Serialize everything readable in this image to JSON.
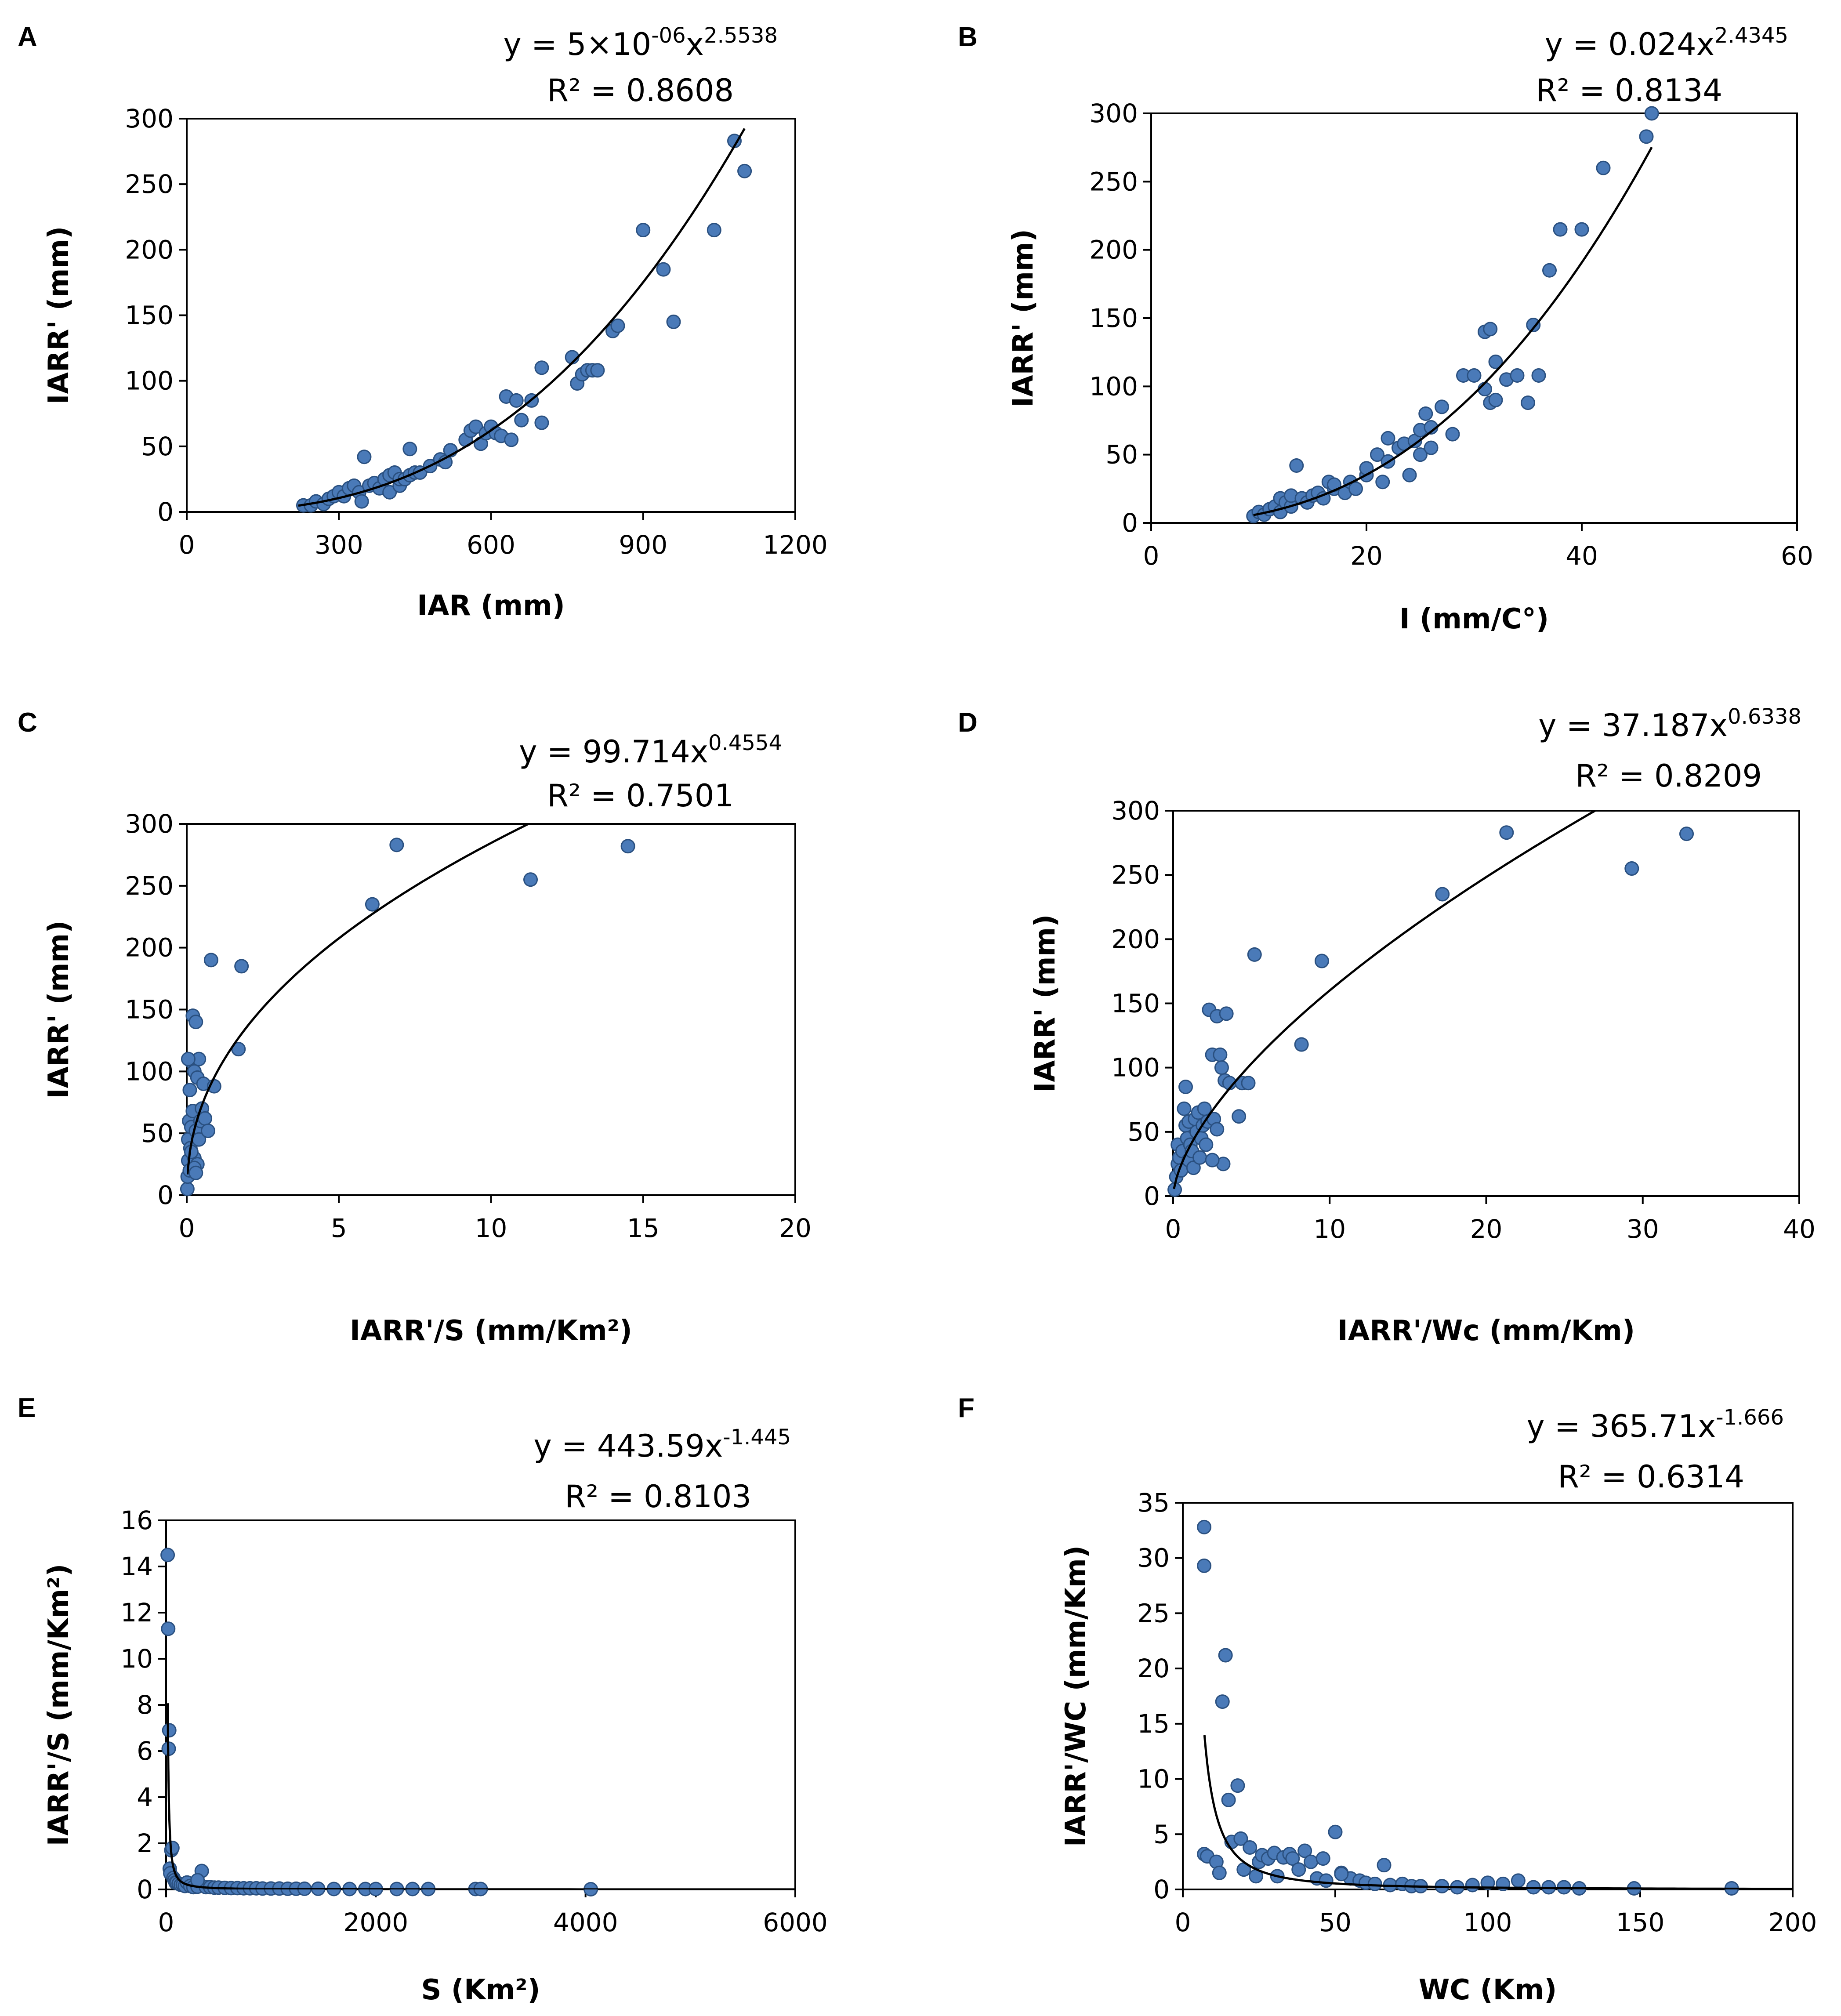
{
  "colors": {
    "point_fill": "#4a7ab8",
    "point_stroke": "#2a5080",
    "line": "#000000"
  },
  "chart_data": [
    {
      "id": "A",
      "type": "scatter",
      "letter": "A",
      "eq_base": "y = 5×10",
      "eq_exp1": "-06",
      "eq_mid": "x",
      "eq_exp2": "2.5538",
      "r2": "R² = 0.8608",
      "xlabel": "IAR (mm)",
      "ylabel": "IARR' (mm)",
      "xlim": [
        0,
        1200
      ],
      "ylim": [
        0,
        300
      ],
      "xticks": [
        "0",
        "300",
        "600",
        "900",
        "1200"
      ],
      "yticks": [
        "0",
        "50",
        "100",
        "150",
        "200",
        "250",
        "300"
      ],
      "trend": {
        "kind": "power",
        "a": 5e-06,
        "b": 2.5538,
        "xmin": 220,
        "xmax": 1100
      },
      "x": [
        230,
        245,
        255,
        270,
        280,
        290,
        300,
        310,
        320,
        330,
        340,
        345,
        350,
        360,
        370,
        380,
        390,
        400,
        400,
        410,
        420,
        420,
        430,
        440,
        440,
        450,
        460,
        480,
        500,
        510,
        520,
        550,
        560,
        570,
        580,
        590,
        600,
        610,
        620,
        630,
        640,
        650,
        660,
        680,
        700,
        700,
        760,
        770,
        780,
        790,
        800,
        810,
        840,
        850,
        900,
        940,
        960,
        1040,
        1080,
        1100
      ],
      "y": [
        5,
        5,
        8,
        6,
        10,
        12,
        15,
        12,
        18,
        20,
        15,
        8,
        42,
        20,
        22,
        18,
        25,
        28,
        15,
        30,
        20,
        25,
        25,
        28,
        48,
        30,
        30,
        35,
        40,
        38,
        47,
        55,
        62,
        65,
        52,
        60,
        65,
        60,
        58,
        88,
        55,
        85,
        70,
        85,
        68,
        110,
        118,
        98,
        105,
        108,
        108,
        108,
        138,
        142,
        215,
        185,
        145,
        215,
        283,
        260
      ]
    },
    {
      "id": "B",
      "type": "scatter",
      "letter": "B",
      "eq_base": "y = 0.024x",
      "eq_exp1": "2.4345",
      "r2": "R² = 0.8134",
      "xlabel": "I (mm/C°)",
      "ylabel": "IARR' (mm)",
      "xlim": [
        0,
        60
      ],
      "ylim": [
        0,
        300
      ],
      "xticks": [
        "0",
        "20",
        "40",
        "60"
      ],
      "yticks": [
        "0",
        "50",
        "100",
        "150",
        "200",
        "250",
        "300"
      ],
      "trend": {
        "kind": "power",
        "a": 0.024,
        "b": 2.4345,
        "xmin": 9.5,
        "xmax": 46.5
      },
      "x": [
        9.5,
        10,
        10.5,
        11,
        11.5,
        12,
        12,
        12.5,
        13,
        13,
        13.5,
        14,
        14.5,
        15,
        15.5,
        16,
        16.5,
        17,
        17,
        18,
        18.5,
        19,
        20,
        20,
        21,
        21.5,
        22,
        22,
        23,
        23.5,
        24,
        24.5,
        25,
        25,
        25.5,
        26,
        26,
        27,
        28,
        29,
        30,
        31,
        31,
        31.5,
        31.5,
        32,
        32,
        33,
        34,
        35,
        35.5,
        36,
        37,
        38,
        40,
        42,
        46,
        46.5
      ],
      "y": [
        5,
        8,
        6,
        10,
        12,
        8,
        18,
        15,
        12,
        20,
        42,
        18,
        15,
        20,
        22,
        18,
        30,
        25,
        28,
        22,
        30,
        25,
        35,
        40,
        50,
        30,
        45,
        62,
        55,
        58,
        35,
        60,
        50,
        68,
        80,
        70,
        55,
        85,
        65,
        108,
        108,
        98,
        140,
        142,
        88,
        118,
        90,
        105,
        108,
        88,
        145,
        108,
        185,
        215,
        215,
        260,
        283,
        300
      ]
    },
    {
      "id": "C",
      "type": "scatter",
      "letter": "C",
      "eq_base": "y = 99.714x",
      "eq_exp1": "0.4554",
      "r2": "R² = 0.7501",
      "xlabel": "IARR'/S (mm/Km²)",
      "ylabel": "IARR' (mm)",
      "xlim": [
        0,
        20
      ],
      "ylim": [
        0,
        300
      ],
      "xticks": [
        "0",
        "5",
        "10",
        "15",
        "20"
      ],
      "yticks": [
        "0",
        "50",
        "100",
        "150",
        "200",
        "250",
        "300"
      ],
      "trend": {
        "kind": "power",
        "a": 99.714,
        "b": 0.4554,
        "xmin": 0.02,
        "xmax": 20
      },
      "x": [
        0.02,
        0.03,
        0.05,
        0.05,
        0.08,
        0.1,
        0.1,
        0.12,
        0.15,
        0.15,
        0.2,
        0.2,
        0.25,
        0.25,
        0.3,
        0.3,
        0.35,
        0.35,
        0.4,
        0.4,
        0.45,
        0.5,
        0.55,
        0.6,
        0.7,
        0.8,
        0.9,
        1.7,
        1.8,
        6.1,
        6.9,
        11.3,
        14.5,
        0.05,
        0.15,
        0.25,
        0.3
      ],
      "y": [
        5,
        15,
        28,
        45,
        60,
        20,
        85,
        38,
        55,
        108,
        68,
        145,
        30,
        100,
        52,
        140,
        25,
        95,
        45,
        110,
        60,
        70,
        90,
        62,
        52,
        190,
        88,
        118,
        185,
        235,
        283,
        255,
        282,
        110,
        35,
        22,
        18
      ]
    },
    {
      "id": "D",
      "type": "scatter",
      "letter": "D",
      "eq_base": "y = 37.187x",
      "eq_exp1": "0.6338",
      "r2": "R² = 0.8209",
      "xlabel": "IARR'/Wc (mm/Km)",
      "ylabel": "IARR' (mm)",
      "xlim": [
        0,
        40
      ],
      "ylim": [
        0,
        300
      ],
      "xticks": [
        "0",
        "10",
        "20",
        "30",
        "40"
      ],
      "yticks": [
        "0",
        "50",
        "100",
        "150",
        "200",
        "250",
        "300"
      ],
      "trend": {
        "kind": "power",
        "a": 37.187,
        "b": 0.6338,
        "xmin": 0.05,
        "xmax": 40
      },
      "x": [
        0.1,
        0.2,
        0.3,
        0.3,
        0.4,
        0.5,
        0.6,
        0.7,
        0.8,
        0.8,
        0.9,
        1.0,
        1.0,
        1.1,
        1.2,
        1.3,
        1.4,
        1.5,
        1.6,
        1.7,
        1.8,
        1.9,
        2.0,
        2.1,
        2.2,
        2.3,
        2.5,
        2.6,
        2.8,
        3.0,
        3.1,
        3.2,
        3.3,
        3.4,
        3.6,
        4.2,
        4.4,
        4.8,
        5.2,
        9.5,
        8.2,
        17.2,
        21.3,
        29.3,
        32.8,
        2.5,
        2.8
      ],
      "y": [
        5,
        15,
        25,
        40,
        30,
        20,
        35,
        68,
        55,
        85,
        45,
        28,
        58,
        40,
        35,
        22,
        60,
        50,
        65,
        30,
        45,
        55,
        68,
        40,
        58,
        145,
        110,
        60,
        140,
        110,
        100,
        25,
        90,
        142,
        88,
        62,
        88,
        88,
        188,
        183,
        118,
        235,
        283,
        255,
        282,
        28,
        52
      ]
    },
    {
      "id": "E",
      "type": "scatter",
      "letter": "E",
      "eq_base": "y = 443.59x",
      "eq_exp1": "-1.445",
      "r2": "R² = 0.8103",
      "xlabel": "S (Km²)",
      "ylabel": "IARR'/S (mm/Km²)",
      "xlim": [
        0,
        6000
      ],
      "ylim": [
        0,
        16
      ],
      "xticks": [
        "0",
        "2000",
        "4000",
        "6000"
      ],
      "yticks": [
        "0",
        "2",
        "4",
        "6",
        "8",
        "10",
        "12",
        "14",
        "16"
      ],
      "trend": {
        "kind": "power",
        "a": 443.59,
        "b": -1.445,
        "xmin": 16,
        "xmax": 6000
      },
      "x": [
        15,
        20,
        25,
        30,
        35,
        40,
        50,
        60,
        70,
        80,
        90,
        100,
        120,
        140,
        160,
        180,
        200,
        230,
        260,
        300,
        340,
        380,
        420,
        460,
        500,
        560,
        620,
        680,
        740,
        800,
        860,
        920,
        1000,
        1080,
        1160,
        1240,
        1320,
        1450,
        1600,
        1750,
        1900,
        2000,
        2200,
        2350,
        2500,
        2950,
        3000,
        4050,
        300
      ],
      "y": [
        14.5,
        11.3,
        6.1,
        6.9,
        0.9,
        0.7,
        1.7,
        1.8,
        0.5,
        0.4,
        0.3,
        0.3,
        0.25,
        0.2,
        0.2,
        0.15,
        0.3,
        0.15,
        0.1,
        0.12,
        0.8,
        0.1,
        0.1,
        0.08,
        0.08,
        0.07,
        0.06,
        0.06,
        0.05,
        0.05,
        0.05,
        0.04,
        0.04,
        0.04,
        0.03,
        0.03,
        0.03,
        0.03,
        0.02,
        0.02,
        0.02,
        0.02,
        0.02,
        0.02,
        0.02,
        0.02,
        0.02,
        0.01,
        0.4
      ]
    },
    {
      "id": "F",
      "type": "scatter",
      "letter": "F",
      "eq_base": "y = 365.71x",
      "eq_exp1": "-1.666",
      "r2": "R² = 0.6314",
      "xlabel": "WC (Km)",
      "ylabel": "IARR'/WC (mm/Km)",
      "xlim": [
        0,
        200
      ],
      "ylim": [
        0,
        35
      ],
      "xticks": [
        "0",
        "50",
        "100",
        "150",
        "200"
      ],
      "yticks": [
        "0",
        "5",
        "10",
        "15",
        "20",
        "25",
        "30",
        "35"
      ],
      "trend": {
        "kind": "power",
        "a": 365.71,
        "b": -1.666,
        "xmin": 7.1,
        "xmax": 200
      },
      "x": [
        7,
        7,
        7,
        8,
        11,
        12,
        13,
        14,
        15,
        16,
        18,
        19,
        20,
        22,
        24,
        25,
        26,
        28,
        30,
        31,
        33,
        35,
        36,
        38,
        40,
        42,
        44,
        47,
        50,
        52,
        55,
        58,
        60,
        63,
        66,
        68,
        72,
        75,
        78,
        85,
        90,
        95,
        100,
        105,
        110,
        115,
        120,
        125,
        130,
        148,
        180,
        46,
        52
      ],
      "y": [
        29.3,
        32.8,
        3.2,
        3.0,
        2.5,
        1.5,
        17.0,
        21.2,
        8.1,
        4.3,
        9.4,
        4.6,
        1.8,
        3.8,
        1.2,
        2.5,
        3.1,
        2.8,
        3.3,
        1.2,
        2.9,
        3.2,
        2.8,
        1.8,
        3.5,
        2.5,
        1.0,
        0.8,
        5.2,
        1.5,
        1.0,
        0.8,
        0.6,
        0.5,
        2.2,
        0.4,
        0.5,
        0.3,
        0.3,
        0.3,
        0.2,
        0.4,
        0.6,
        0.5,
        0.8,
        0.2,
        0.2,
        0.2,
        0.1,
        0.1,
        0.1,
        2.8,
        1.4
      ]
    }
  ]
}
